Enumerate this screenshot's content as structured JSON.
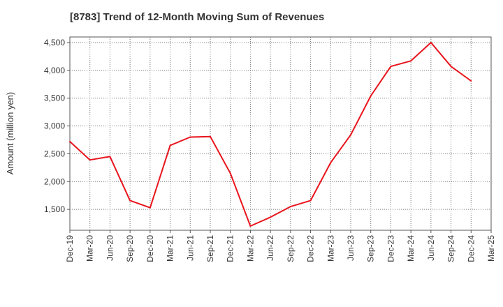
{
  "chart_data": {
    "type": "line",
    "title": "[8783]  Trend of 12-Month Moving Sum of Revenues",
    "ylabel": "Amount (million yen)",
    "xlabel": "",
    "ylim": [
      1125,
      4600
    ],
    "yticks": [
      1500,
      2000,
      2500,
      3000,
      3500,
      4000,
      4500
    ],
    "ytick_labels": [
      "1,500",
      "2,000",
      "2,500",
      "3,000",
      "3,500",
      "4,000",
      "4,500"
    ],
    "categories": [
      "Dec-19",
      "Mar-20",
      "Jun-20",
      "Sep-20",
      "Dec-20",
      "Mar-21",
      "Jun-21",
      "Sep-21",
      "Dec-21",
      "Mar-22",
      "Jun-22",
      "Sep-22",
      "Dec-22",
      "Mar-23",
      "Jun-23",
      "Sep-23",
      "Dec-23",
      "Mar-24",
      "Jun-24",
      "Sep-24",
      "Dec-24",
      "Mar-25"
    ],
    "series": [
      {
        "color": "#e8141c",
        "values": [
          2720,
          2390,
          2450,
          1660,
          1530,
          2650,
          2800,
          2810,
          2150,
          1200,
          1360,
          1550,
          1660,
          2340,
          2840,
          3540,
          4070,
          4170,
          4500,
          4070,
          3810,
          null
        ]
      }
    ],
    "grid": true,
    "legend": "none"
  }
}
